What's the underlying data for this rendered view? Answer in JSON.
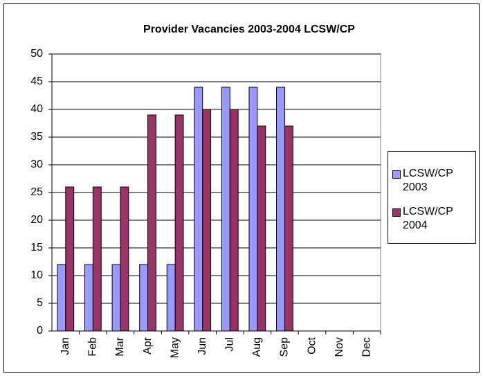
{
  "chart_data": {
    "type": "bar",
    "title": "Provider Vacancies 2003-2004  LCSW/CP",
    "categories": [
      "Jan",
      "Feb",
      "Mar",
      "Apr",
      "May",
      "Jun",
      "Jul",
      "Aug",
      "Sep",
      "Oct",
      "Nov",
      "Dec"
    ],
    "series": [
      {
        "name": "LCSW/CP 2003",
        "color": "#9999ff",
        "values": [
          12,
          12,
          12,
          12,
          12,
          44,
          44,
          44,
          44,
          null,
          null,
          null
        ]
      },
      {
        "name": "LCSW/CP 2004",
        "color": "#993366",
        "values": [
          26,
          26,
          26,
          39,
          39,
          40,
          40,
          37,
          37,
          null,
          null,
          null
        ]
      }
    ],
    "ylim": [
      0,
      50
    ],
    "yticks": [
      0,
      5,
      10,
      15,
      20,
      25,
      30,
      35,
      40,
      45,
      50
    ],
    "grid": true,
    "legend": "right"
  }
}
